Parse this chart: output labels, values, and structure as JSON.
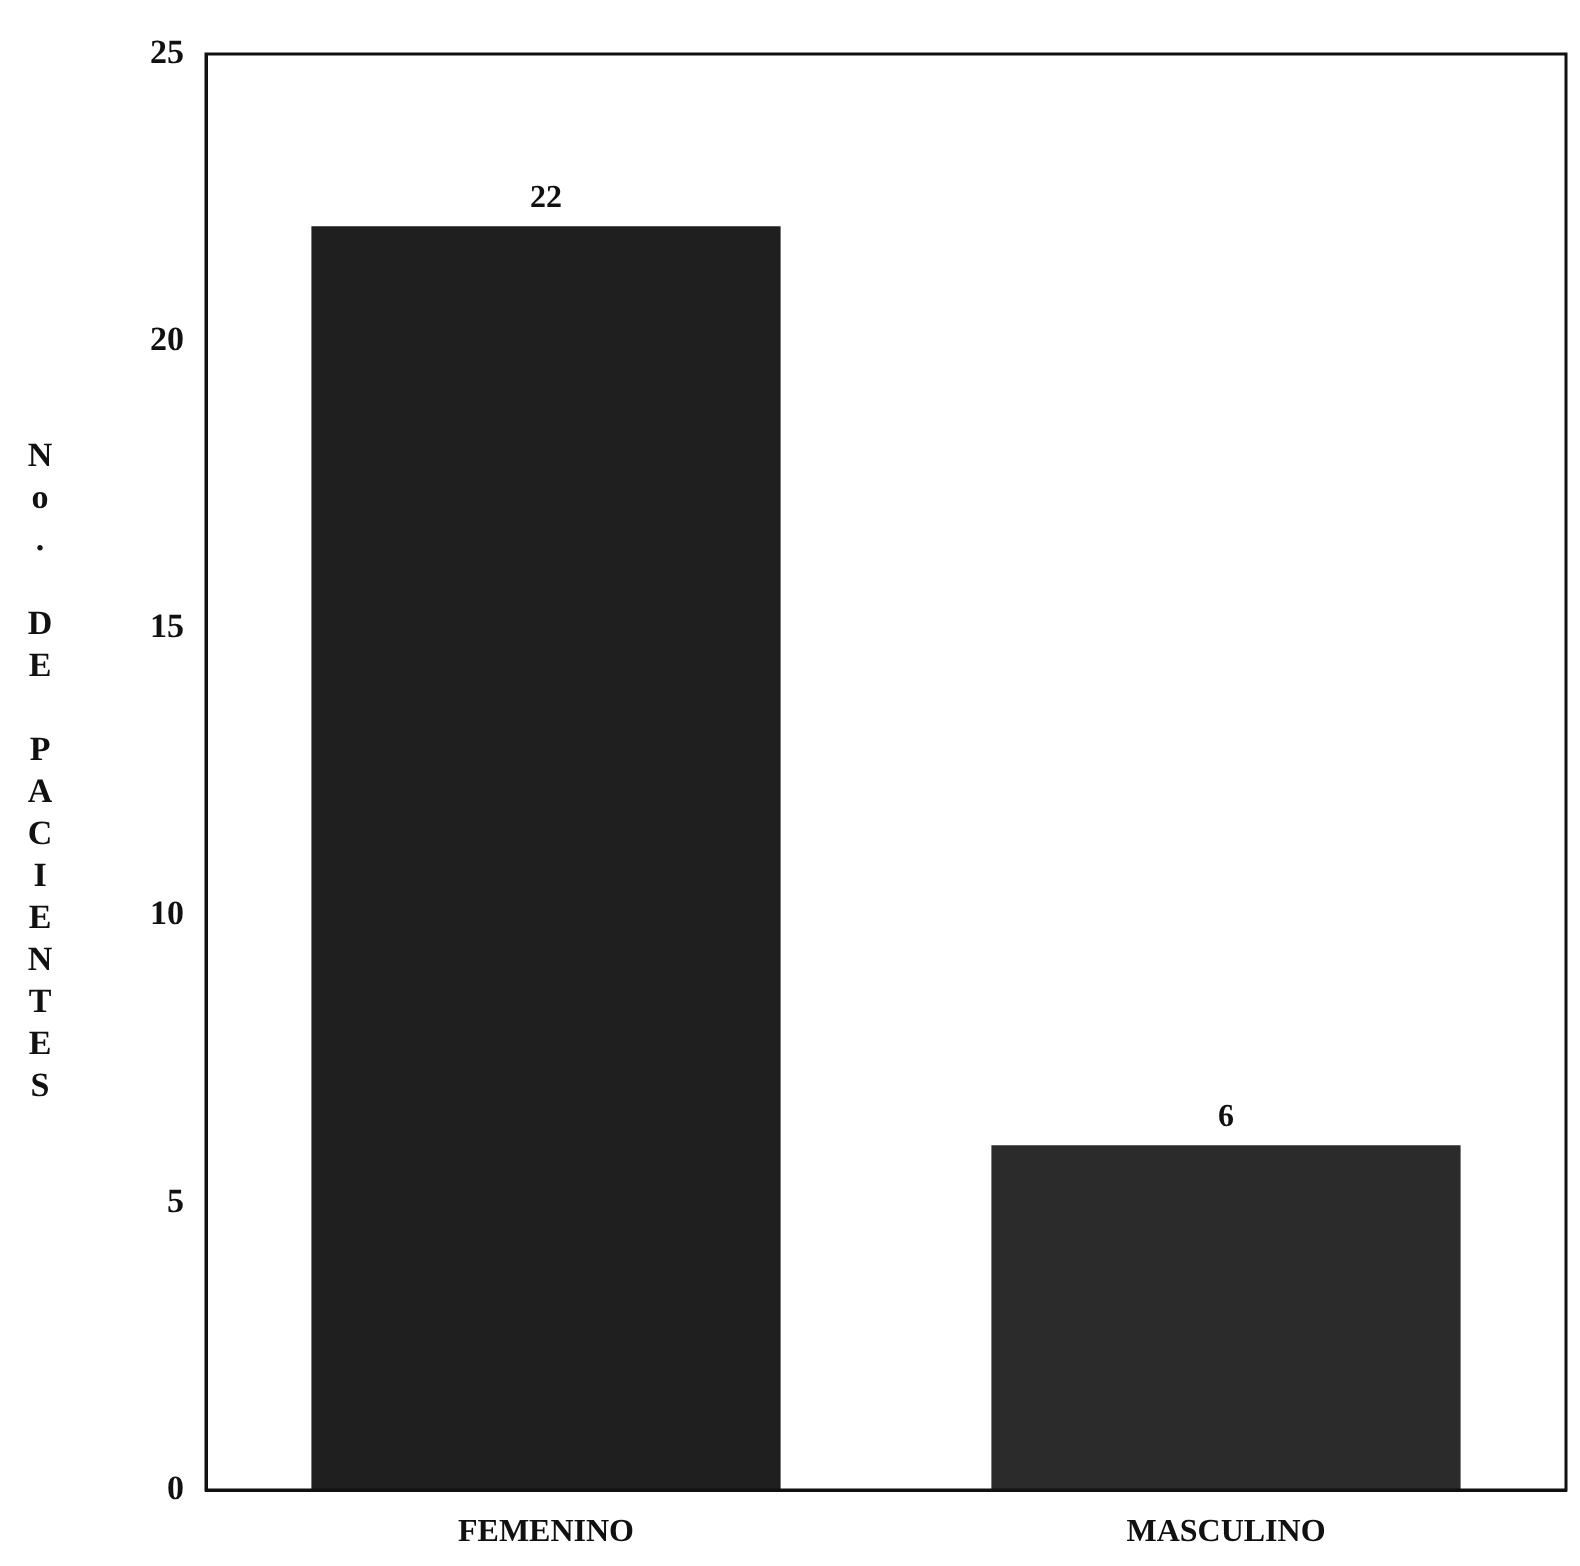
{
  "chart_data": {
    "type": "bar",
    "ylabel": "No. DE PACIENTES",
    "categories": [
      "FEMENINO",
      "MASCULINO"
    ],
    "values": [
      22,
      6
    ],
    "colors": [
      "#1f1f1f",
      "#2b2b2b"
    ],
    "ylim": [
      0,
      25
    ],
    "yticks": [
      0,
      5,
      10,
      15,
      20,
      25
    ],
    "grid": false,
    "legend": false,
    "data_labels": true
  }
}
